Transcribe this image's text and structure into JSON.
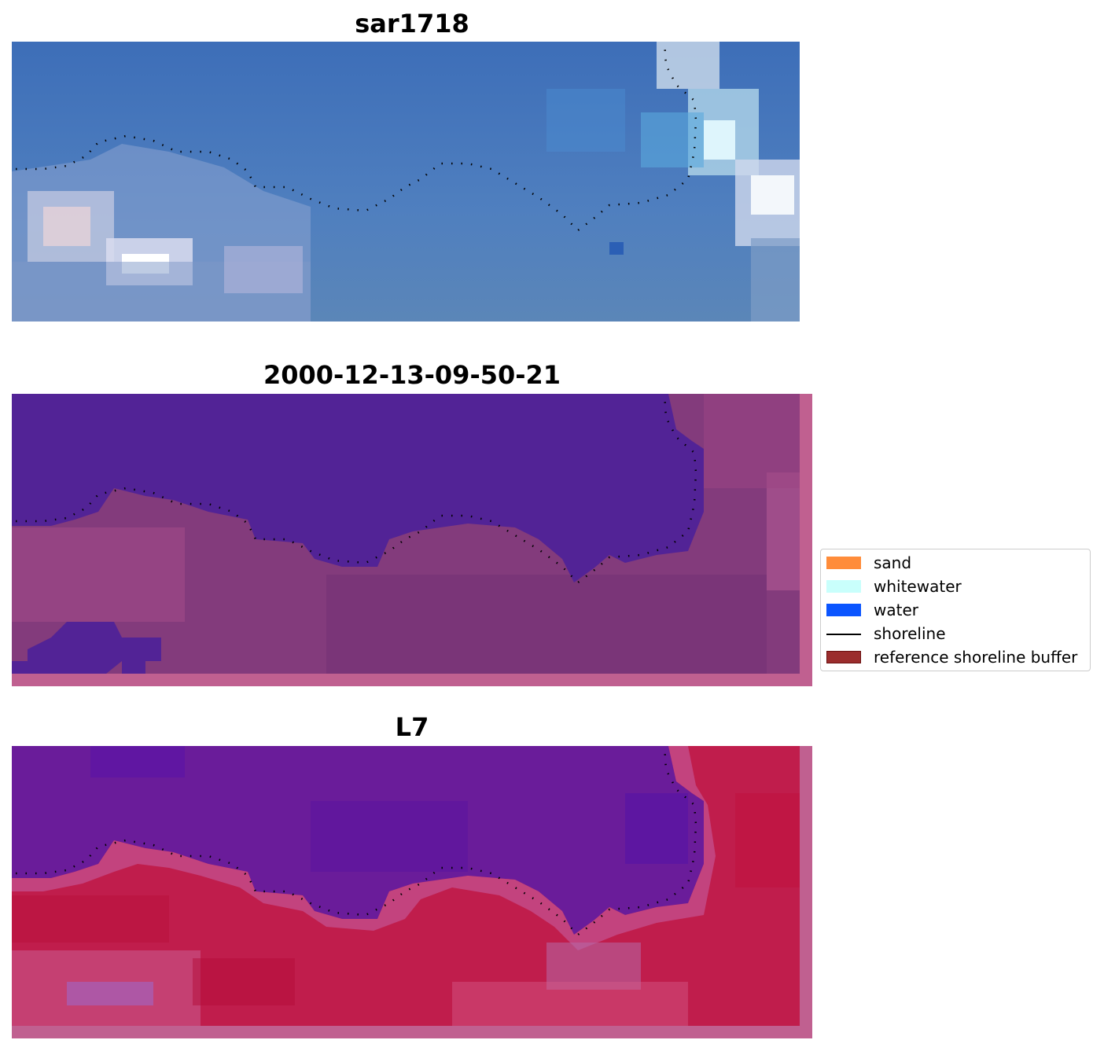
{
  "panels": [
    {
      "title": "sar1718",
      "kind": "rgb"
    },
    {
      "title": "2000-12-13-09-50-21",
      "kind": "classified"
    },
    {
      "title": "L7",
      "kind": "index"
    }
  ],
  "legend": {
    "items": [
      {
        "label": "sand",
        "color": "#ff8c3a",
        "type": "patch"
      },
      {
        "label": "whitewater",
        "color": "#c9fffc",
        "type": "patch"
      },
      {
        "label": "water",
        "color": "#0b55ff",
        "type": "patch"
      },
      {
        "label": "shoreline",
        "color": "#000000",
        "type": "line"
      },
      {
        "label": "reference shoreline buffer",
        "color": "#9b2d2d",
        "type": "patch"
      }
    ]
  },
  "colors": {
    "rgb_base": "#4a78b8",
    "classified_water": "#522396",
    "classified_land": "#8a3f7e",
    "index_water": "#6a1c9a",
    "index_land": "#c01d4c",
    "buffer_border": "#c06090"
  }
}
